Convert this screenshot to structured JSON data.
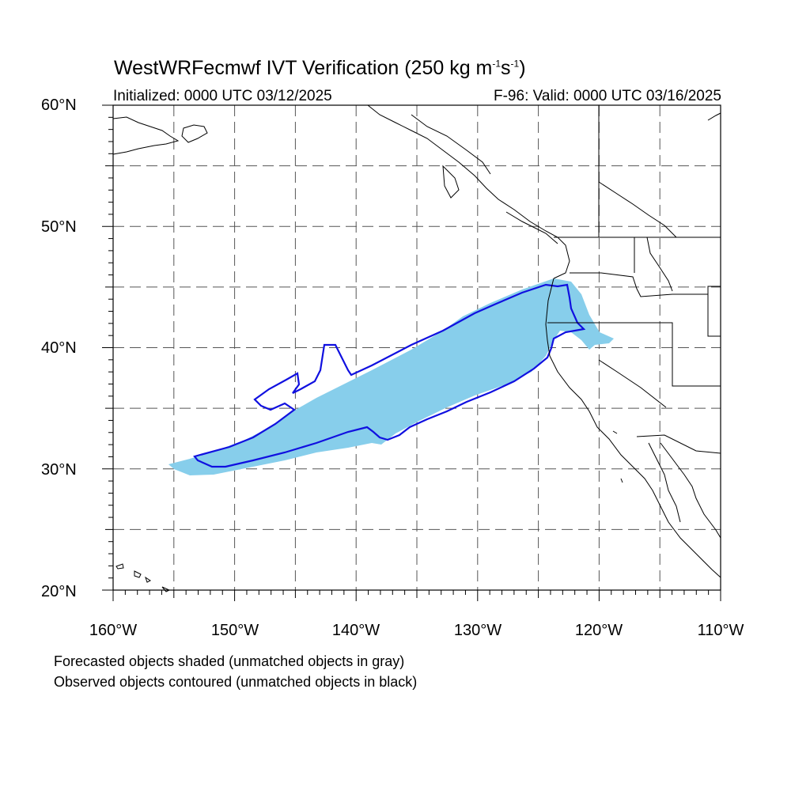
{
  "title": {
    "main_prefix": "WestWRFecmwf IVT Verification (250 kg m",
    "exp1": "-1",
    "mid": "s",
    "exp2": "-1",
    "suffix": ")"
  },
  "subtitle": {
    "initialized": "Initialized: 0000 UTC 03/12/2025",
    "valid": "F-96: Valid: 0000 UTC 03/16/2025"
  },
  "map": {
    "lat_range": [
      20,
      60
    ],
    "lon_range": [
      -160,
      -110
    ],
    "lat_labels": [
      "60°N",
      "50°N",
      "40°N",
      "30°N",
      "20°N"
    ],
    "lon_labels": [
      "160°W",
      "150°W",
      "140°W",
      "130°W",
      "120°W",
      "110°W"
    ],
    "grid": "dashed every 5 degrees",
    "colors": {
      "forecast_fill": "#87ceeb",
      "observed_contour": "#1010e0",
      "coastline": "#000000",
      "grid": "#555555"
    }
  },
  "notes": {
    "line1": "Forecasted objects shaded (unmatched objects in gray)",
    "line2": "Observed objects contoured (unmatched objects in black)"
  }
}
